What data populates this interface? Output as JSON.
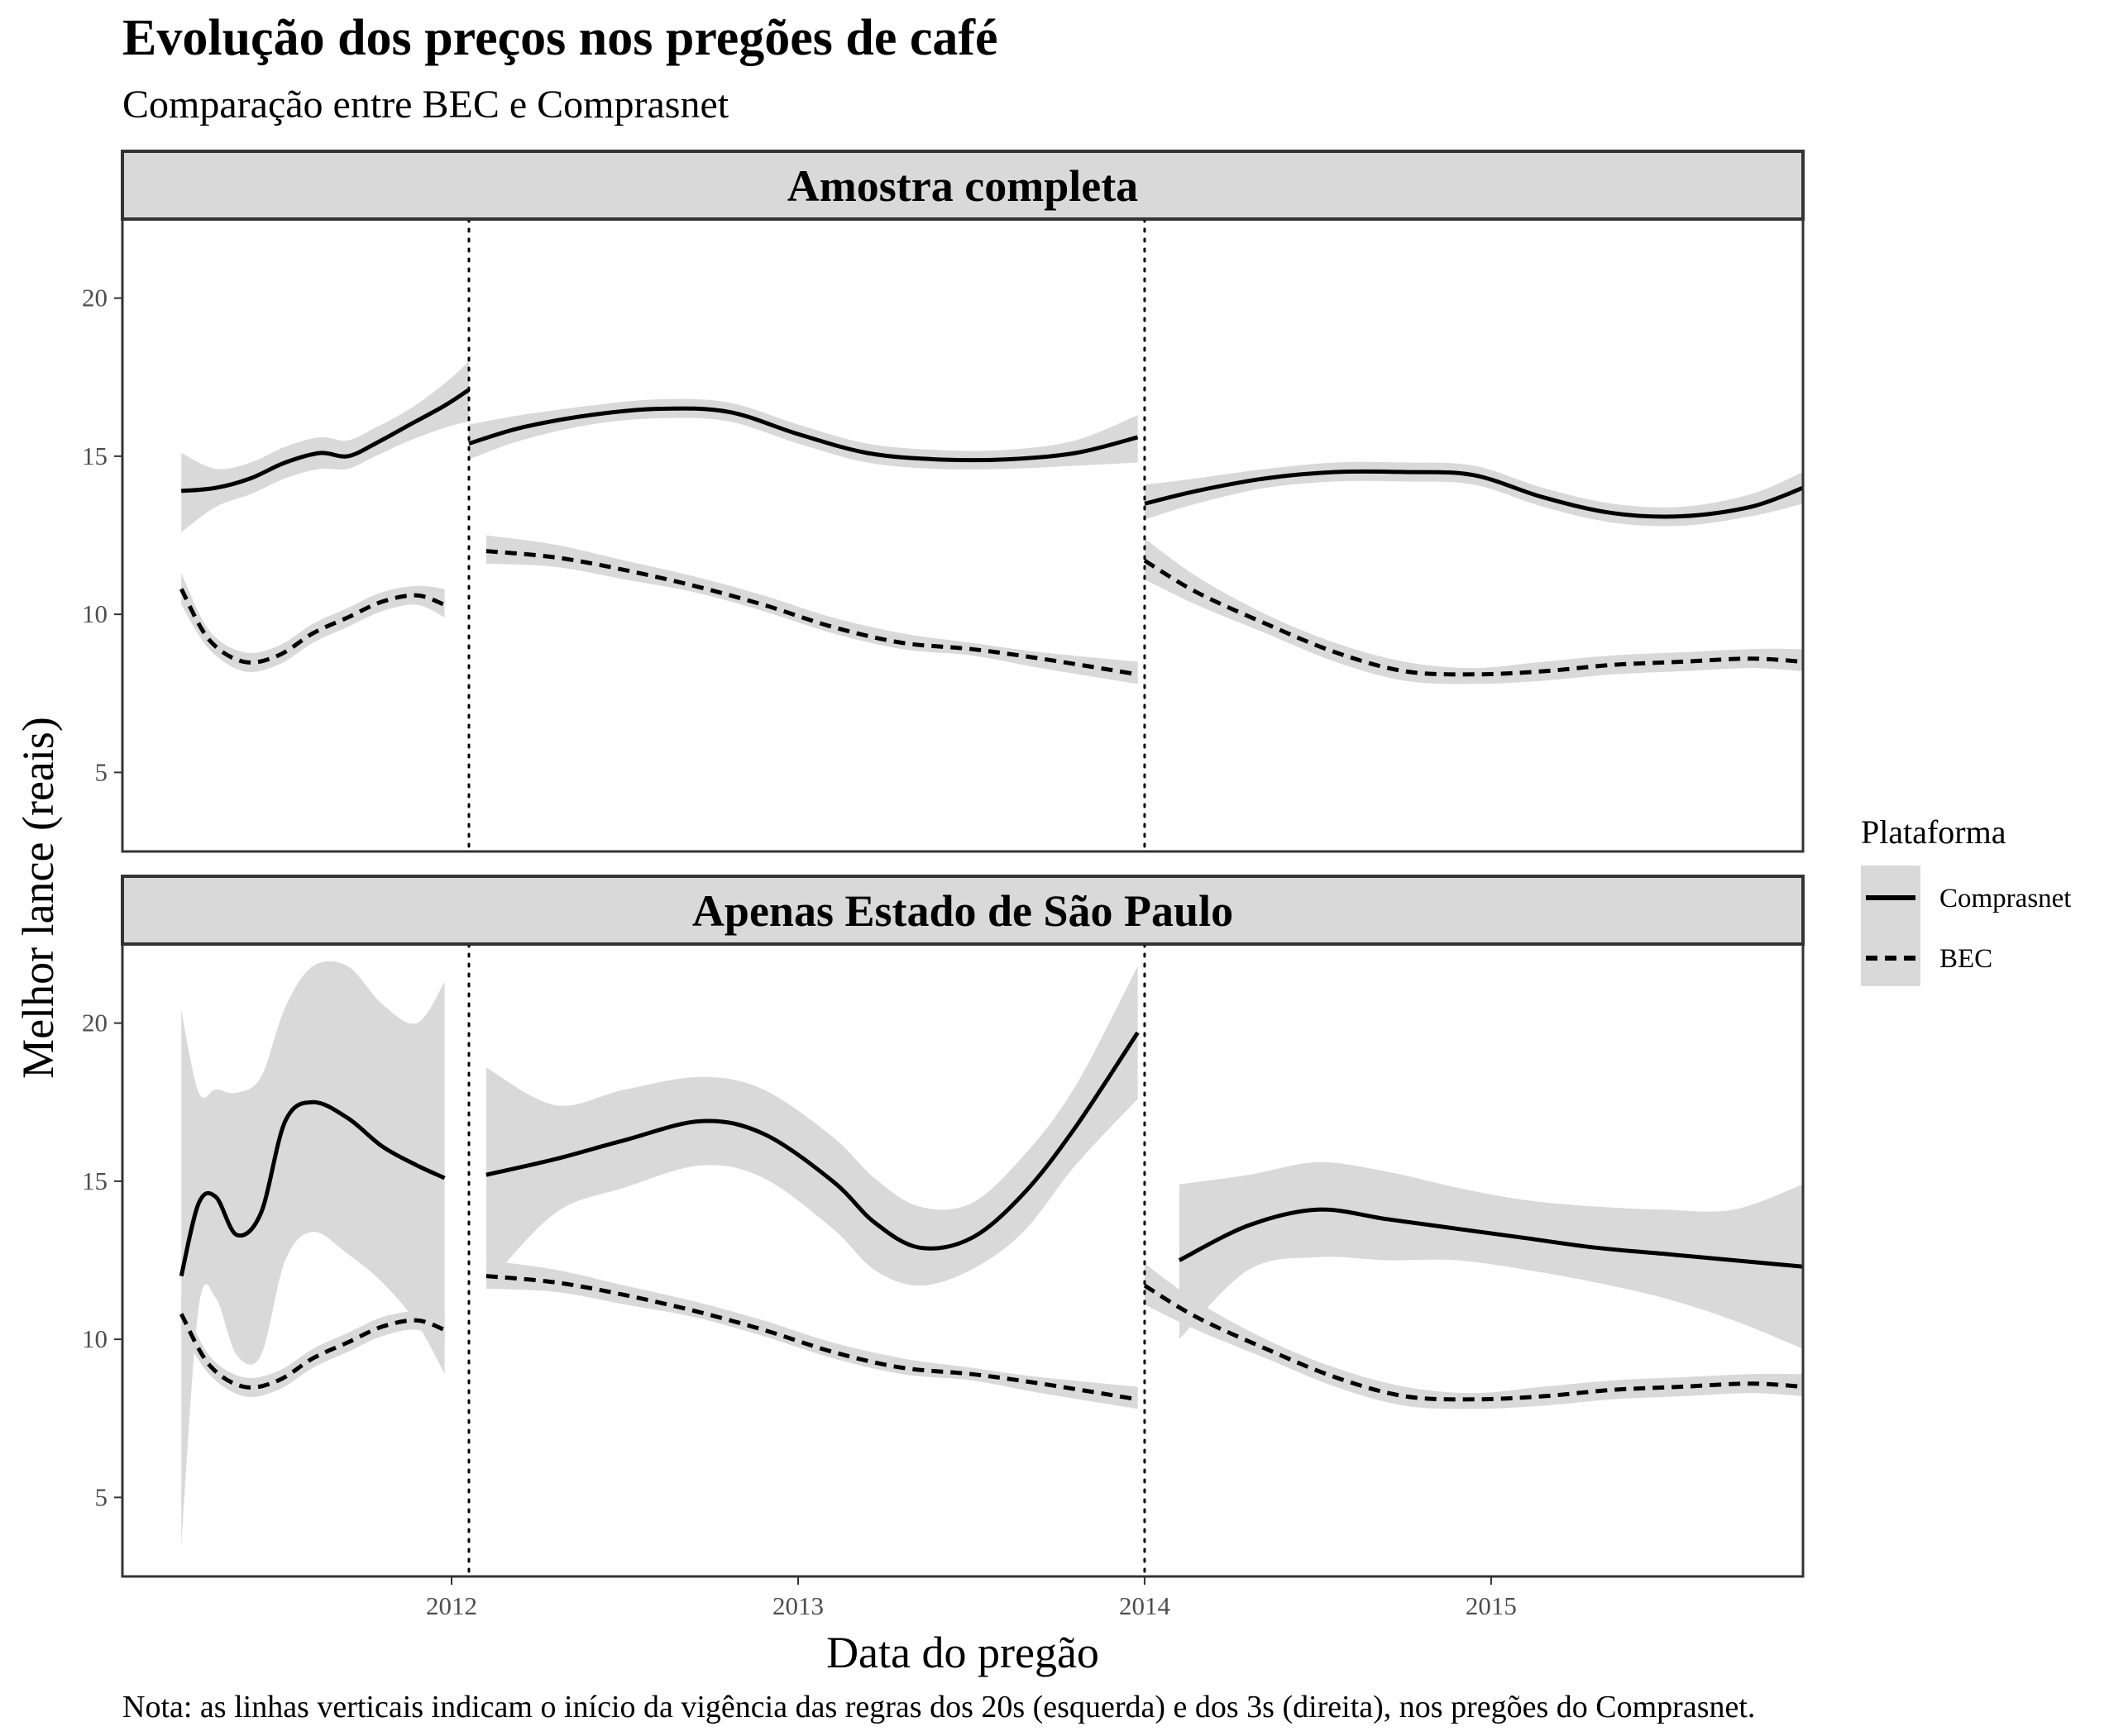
{
  "title": "Evolução dos preços nos pregões de café",
  "subtitle": "Comparação entre BEC e Comprasnet",
  "caption": "Nota: as linhas verticais indicam o início da vigência das regras dos 20s (esquerda) e dos 3s (direita), nos pregões do Comprasnet.",
  "colors": {
    "band": "#d9d9d9",
    "strip": "#d9d9d9",
    "line": "#000000",
    "border": "#333333",
    "tick": "#4d4d4d"
  },
  "chart_data": {
    "type": "line",
    "xlabel": "Data do pregão",
    "ylabel": "Melhor lance (reais)",
    "xlim": [
      2011.05,
      2015.9
    ],
    "ylim": [
      2.5,
      22.5
    ],
    "x_ticks": [
      2012,
      2013,
      2014,
      2015
    ],
    "x_tick_labels": [
      "2012",
      "2013",
      "2014",
      "2015"
    ],
    "y_ticks": [
      5,
      10,
      15,
      20
    ],
    "y_tick_labels": [
      "5",
      "10",
      "15",
      "20"
    ],
    "vlines": [
      2012.05,
      2014.0
    ],
    "legend": {
      "title": "Plataforma",
      "position": "right",
      "entries": [
        {
          "label": "Comprasnet",
          "linetype": "solid"
        },
        {
          "label": "BEC",
          "linetype": "dashed"
        }
      ]
    },
    "panels": [
      {
        "label": "Amostra completa",
        "series": [
          {
            "name": "Comprasnet",
            "linetype": "solid",
            "segments": [
              {
                "x": [
                  2011.22,
                  2011.32,
                  2011.42,
                  2011.52,
                  2011.62,
                  2011.7,
                  2011.78,
                  2011.88,
                  2011.98,
                  2012.05
                ],
                "y": [
                  13.9,
                  14.0,
                  14.3,
                  14.8,
                  15.1,
                  15.0,
                  15.4,
                  16.0,
                  16.6,
                  17.1
                ],
                "lower": [
                  12.6,
                  13.4,
                  13.8,
                  14.3,
                  14.6,
                  14.6,
                  15.0,
                  15.5,
                  15.9,
                  16.1
                ],
                "upper": [
                  15.1,
                  14.6,
                  14.8,
                  15.3,
                  15.6,
                  15.5,
                  15.9,
                  16.5,
                  17.3,
                  18.0
                ]
              },
              {
                "x": [
                  2012.05,
                  2012.2,
                  2012.4,
                  2012.6,
                  2012.8,
                  2013.0,
                  2013.2,
                  2013.4,
                  2013.6,
                  2013.8,
                  2013.98
                ],
                "y": [
                  15.4,
                  15.9,
                  16.3,
                  16.5,
                  16.4,
                  15.7,
                  15.1,
                  14.9,
                  14.9,
                  15.1,
                  15.6
                ],
                "lower": [
                  14.9,
                  15.5,
                  16.0,
                  16.2,
                  16.1,
                  15.4,
                  14.8,
                  14.6,
                  14.6,
                  14.7,
                  14.8
                ],
                "upper": [
                  16.0,
                  16.3,
                  16.6,
                  16.8,
                  16.7,
                  16.0,
                  15.4,
                  15.2,
                  15.2,
                  15.5,
                  16.3
                ]
              },
              {
                "x": [
                  2014.0,
                  2014.15,
                  2014.35,
                  2014.55,
                  2014.75,
                  2014.95,
                  2015.15,
                  2015.35,
                  2015.55,
                  2015.75,
                  2015.9
                ],
                "y": [
                  13.5,
                  13.9,
                  14.3,
                  14.5,
                  14.5,
                  14.4,
                  13.7,
                  13.2,
                  13.1,
                  13.4,
                  14.0
                ],
                "lower": [
                  13.0,
                  13.5,
                  14.0,
                  14.2,
                  14.2,
                  14.1,
                  13.4,
                  12.9,
                  12.8,
                  13.1,
                  13.5
                ],
                "upper": [
                  14.1,
                  14.3,
                  14.6,
                  14.8,
                  14.8,
                  14.7,
                  14.0,
                  13.5,
                  13.4,
                  13.8,
                  14.5
                ]
              }
            ]
          },
          {
            "name": "BEC",
            "linetype": "dashed",
            "segments": [
              {
                "x": [
                  2011.22,
                  2011.3,
                  2011.4,
                  2011.5,
                  2011.6,
                  2011.7,
                  2011.8,
                  2011.9,
                  2011.98
                ],
                "y": [
                  10.8,
                  9.2,
                  8.5,
                  8.7,
                  9.4,
                  9.9,
                  10.4,
                  10.6,
                  10.3
                ],
                "lower": [
                  10.3,
                  8.9,
                  8.2,
                  8.4,
                  9.1,
                  9.6,
                  10.1,
                  10.3,
                  9.9
                ],
                "upper": [
                  11.3,
                  9.5,
                  8.8,
                  9.0,
                  9.7,
                  10.2,
                  10.7,
                  10.9,
                  10.8
                ]
              },
              {
                "x": [
                  2012.1,
                  2012.3,
                  2012.5,
                  2012.7,
                  2012.9,
                  2013.1,
                  2013.3,
                  2013.5,
                  2013.7,
                  2013.98
                ],
                "y": [
                  12.0,
                  11.8,
                  11.4,
                  10.9,
                  10.3,
                  9.6,
                  9.1,
                  8.9,
                  8.6,
                  8.1
                ],
                "lower": [
                  11.6,
                  11.5,
                  11.1,
                  10.7,
                  10.1,
                  9.4,
                  8.9,
                  8.7,
                  8.3,
                  7.8
                ],
                "upper": [
                  12.5,
                  12.2,
                  11.7,
                  11.2,
                  10.6,
                  9.9,
                  9.4,
                  9.1,
                  8.8,
                  8.5
                ]
              },
              {
                "x": [
                  2014.0,
                  2014.15,
                  2014.35,
                  2014.55,
                  2014.75,
                  2014.95,
                  2015.15,
                  2015.35,
                  2015.55,
                  2015.75,
                  2015.9
                ],
                "y": [
                  11.7,
                  10.7,
                  9.7,
                  8.8,
                  8.2,
                  8.1,
                  8.2,
                  8.4,
                  8.5,
                  8.6,
                  8.5
                ],
                "lower": [
                  11.1,
                  10.3,
                  9.4,
                  8.5,
                  7.9,
                  7.8,
                  7.9,
                  8.1,
                  8.2,
                  8.3,
                  8.2
                ],
                "upper": [
                  12.4,
                  11.2,
                  10.0,
                  9.1,
                  8.5,
                  8.3,
                  8.5,
                  8.7,
                  8.8,
                  8.9,
                  8.9
                ]
              }
            ]
          }
        ]
      },
      {
        "label": "Apenas Estado de São Paulo",
        "series": [
          {
            "name": "Comprasnet",
            "linetype": "solid",
            "segments": [
              {
                "x": [
                  2011.22,
                  2011.27,
                  2011.32,
                  2011.38,
                  2011.45,
                  2011.52,
                  2011.6,
                  2011.7,
                  2011.8,
                  2011.9,
                  2011.98
                ],
                "y": [
                  12.0,
                  14.3,
                  14.5,
                  13.3,
                  14.0,
                  16.9,
                  17.5,
                  17.0,
                  16.1,
                  15.5,
                  15.1
                ],
                "lower": [
                  3.5,
                  11.0,
                  11.3,
                  9.5,
                  9.5,
                  12.5,
                  13.4,
                  12.7,
                  11.8,
                  10.5,
                  8.9
                ],
                "upper": [
                  20.4,
                  17.8,
                  17.9,
                  17.8,
                  18.3,
                  20.5,
                  21.8,
                  21.8,
                  20.6,
                  20.0,
                  21.3
                ]
              },
              {
                "x": [
                  2012.1,
                  2012.3,
                  2012.5,
                  2012.72,
                  2012.9,
                  2013.1,
                  2013.22,
                  2013.35,
                  2013.5,
                  2013.65,
                  2013.8,
                  2013.98
                ],
                "y": [
                  15.2,
                  15.7,
                  16.3,
                  16.9,
                  16.5,
                  15.0,
                  13.7,
                  12.9,
                  13.2,
                  14.6,
                  16.7,
                  19.7
                ],
                "lower": [
                  11.7,
                  14.0,
                  14.8,
                  15.5,
                  15.1,
                  13.5,
                  12.2,
                  11.7,
                  12.2,
                  13.4,
                  15.5,
                  17.6
                ],
                "upper": [
                  18.6,
                  17.4,
                  17.9,
                  18.3,
                  17.9,
                  16.4,
                  15.1,
                  14.2,
                  14.3,
                  15.8,
                  18.0,
                  21.8
                ]
              },
              {
                "x": [
                  2014.1,
                  2014.3,
                  2014.5,
                  2014.7,
                  2014.9,
                  2015.1,
                  2015.3,
                  2015.5,
                  2015.7,
                  2015.9
                ],
                "y": [
                  12.5,
                  13.6,
                  14.1,
                  13.8,
                  13.5,
                  13.2,
                  12.9,
                  12.7,
                  12.5,
                  12.3
                ],
                "lower": [
                  10.0,
                  12.2,
                  12.6,
                  12.5,
                  12.5,
                  12.2,
                  11.8,
                  11.3,
                  10.6,
                  9.7
                ],
                "upper": [
                  14.9,
                  15.2,
                  15.6,
                  15.3,
                  14.8,
                  14.4,
                  14.2,
                  14.1,
                  14.1,
                  14.9
                ]
              }
            ]
          },
          {
            "name": "BEC",
            "linetype": "dashed",
            "segments": [
              {
                "x": [
                  2011.22,
                  2011.3,
                  2011.4,
                  2011.5,
                  2011.6,
                  2011.7,
                  2011.8,
                  2011.9,
                  2011.98
                ],
                "y": [
                  10.8,
                  9.2,
                  8.5,
                  8.7,
                  9.4,
                  9.9,
                  10.4,
                  10.6,
                  10.3
                ],
                "lower": [
                  10.3,
                  8.9,
                  8.2,
                  8.4,
                  9.1,
                  9.6,
                  10.1,
                  10.3,
                  9.9
                ],
                "upper": [
                  11.3,
                  9.5,
                  8.8,
                  9.0,
                  9.7,
                  10.2,
                  10.7,
                  10.9,
                  10.8
                ]
              },
              {
                "x": [
                  2012.1,
                  2012.3,
                  2012.5,
                  2012.7,
                  2012.9,
                  2013.1,
                  2013.3,
                  2013.5,
                  2013.7,
                  2013.98
                ],
                "y": [
                  12.0,
                  11.8,
                  11.4,
                  10.9,
                  10.3,
                  9.6,
                  9.1,
                  8.9,
                  8.6,
                  8.1
                ],
                "lower": [
                  11.6,
                  11.5,
                  11.1,
                  10.7,
                  10.1,
                  9.4,
                  8.9,
                  8.7,
                  8.3,
                  7.8
                ],
                "upper": [
                  12.5,
                  12.2,
                  11.7,
                  11.2,
                  10.6,
                  9.9,
                  9.4,
                  9.1,
                  8.8,
                  8.5
                ]
              },
              {
                "x": [
                  2014.0,
                  2014.15,
                  2014.35,
                  2014.55,
                  2014.75,
                  2014.95,
                  2015.15,
                  2015.35,
                  2015.55,
                  2015.75,
                  2015.9
                ],
                "y": [
                  11.7,
                  10.7,
                  9.7,
                  8.8,
                  8.2,
                  8.1,
                  8.2,
                  8.4,
                  8.5,
                  8.6,
                  8.5
                ],
                "lower": [
                  11.1,
                  10.3,
                  9.4,
                  8.5,
                  7.9,
                  7.8,
                  7.9,
                  8.1,
                  8.2,
                  8.3,
                  8.2
                ],
                "upper": [
                  12.4,
                  11.2,
                  10.0,
                  9.1,
                  8.5,
                  8.3,
                  8.5,
                  8.7,
                  8.8,
                  8.9,
                  8.9
                ]
              }
            ]
          }
        ]
      }
    ]
  }
}
